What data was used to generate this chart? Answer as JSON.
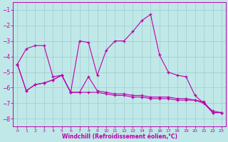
{
  "xlabel": "Windchill (Refroidissement éolien,°C)",
  "xlim": [
    -0.5,
    23.5
  ],
  "ylim": [
    -8.5,
    -0.5
  ],
  "yticks": [
    -8,
    -7,
    -6,
    -5,
    -4,
    -3,
    -2,
    -1
  ],
  "xticks": [
    0,
    1,
    2,
    3,
    4,
    5,
    6,
    7,
    8,
    9,
    10,
    11,
    12,
    13,
    14,
    15,
    16,
    17,
    18,
    19,
    20,
    21,
    22,
    23
  ],
  "bg_color": "#c0e8e8",
  "grid_color": "#a0cccc",
  "line_color": "#bb00aa",
  "line1_y": [
    -4.5,
    -3.5,
    -3.3,
    -3.3,
    -5.3,
    -5.2,
    -6.3,
    -3.0,
    -3.1,
    -5.2,
    -3.6,
    -3.0,
    -3.0,
    -2.4,
    -1.7,
    -1.3,
    -3.9,
    -5.0,
    -5.2,
    -5.3,
    -6.5,
    -7.0,
    -7.5,
    -7.6
  ],
  "line2_y": [
    -4.5,
    -6.2,
    -5.8,
    -5.7,
    -5.5,
    -5.2,
    -6.3,
    -6.3,
    -5.3,
    -6.2,
    -6.3,
    -6.4,
    -6.4,
    -6.5,
    -6.5,
    -6.6,
    -6.6,
    -6.6,
    -6.7,
    -6.7,
    -6.8,
    -6.9,
    -7.6,
    -7.6
  ],
  "line3_y": [
    -4.5,
    -6.2,
    -5.8,
    -5.7,
    -5.5,
    -5.2,
    -6.3,
    -6.3,
    -6.3,
    -6.3,
    -6.4,
    -6.5,
    -6.5,
    -6.6,
    -6.6,
    -6.7,
    -6.7,
    -6.7,
    -6.8,
    -6.8,
    -6.8,
    -7.0,
    -7.6,
    -7.6
  ]
}
